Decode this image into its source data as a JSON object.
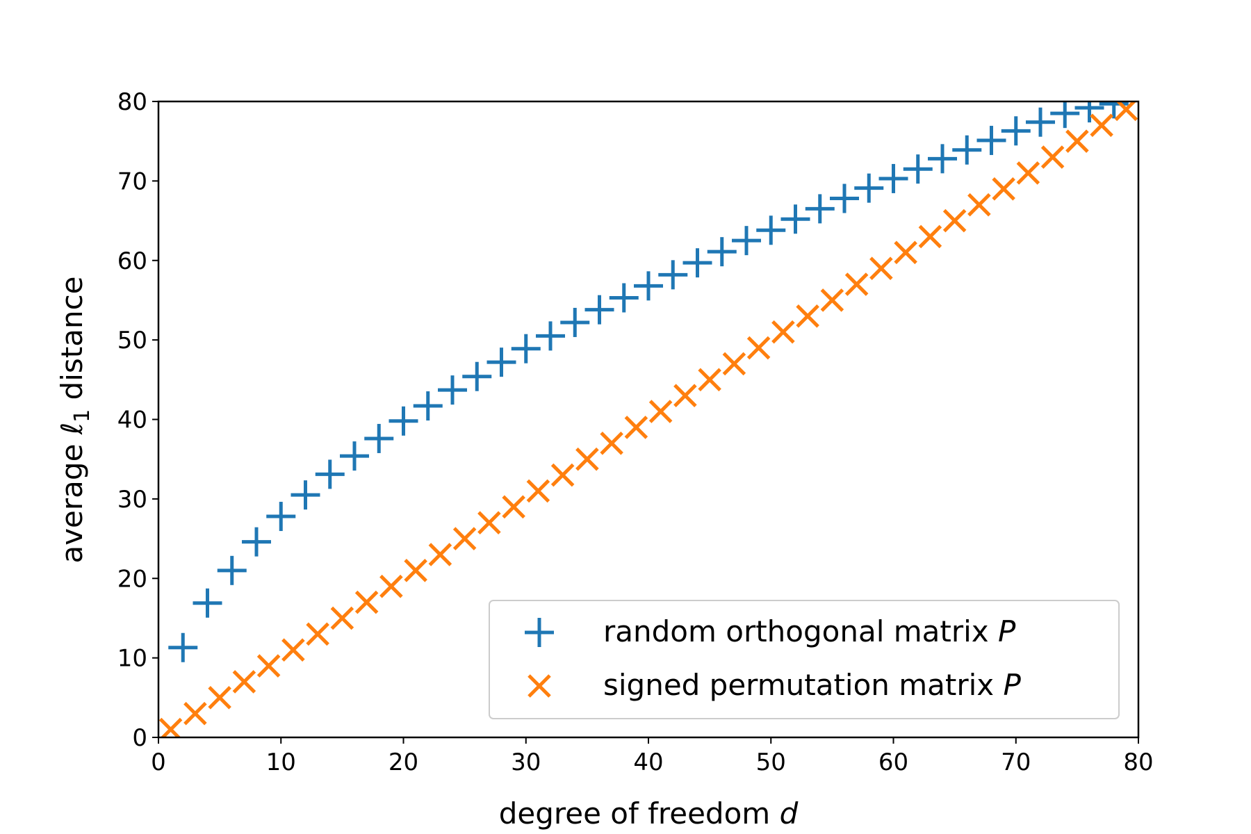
{
  "chart_data": {
    "type": "scatter",
    "xlabel": {
      "main": "degree of freedom ",
      "var": "d"
    },
    "ylabel": {
      "pre": "average ",
      "ell": "ℓ",
      "sub": "1",
      "post": " distance"
    },
    "xlim": [
      0,
      80
    ],
    "ylim": [
      0,
      80
    ],
    "xticks": [
      "0",
      "10",
      "20",
      "30",
      "40",
      "50",
      "60",
      "70",
      "80"
    ],
    "yticks": [
      "0",
      "10",
      "20",
      "30",
      "40",
      "50",
      "60",
      "70",
      "80"
    ],
    "grid": false,
    "legend_position": "lower-right",
    "series": [
      {
        "name": "random orthogonal matrix P",
        "label_text": "random orthogonal matrix ",
        "label_var": "P",
        "marker": "plus",
        "color": "#1f77b4",
        "x": [
          2,
          4,
          6,
          8,
          10,
          12,
          14,
          16,
          18,
          20,
          22,
          24,
          26,
          28,
          30,
          32,
          34,
          36,
          38,
          40,
          42,
          44,
          46,
          48,
          50,
          52,
          54,
          56,
          58,
          60,
          62,
          64,
          66,
          68,
          70,
          72,
          74,
          76,
          78
        ],
        "y": [
          11.3,
          16.9,
          21.0,
          24.6,
          27.8,
          30.5,
          33.1,
          35.4,
          37.6,
          39.8,
          41.7,
          43.7,
          45.4,
          47.2,
          48.9,
          50.5,
          52.2,
          53.8,
          55.3,
          56.8,
          58.2,
          59.7,
          61.1,
          62.5,
          63.8,
          65.2,
          66.5,
          67.8,
          69.1,
          70.3,
          71.5,
          72.8,
          73.9,
          75.1,
          76.3,
          77.4,
          78.5,
          79.2,
          79.7
        ]
      },
      {
        "name": "signed permutation matrix P",
        "label_text": "signed permutation matrix ",
        "label_var": "P",
        "marker": "x",
        "color": "#ff7f0e",
        "x": [
          1,
          3,
          5,
          7,
          9,
          11,
          13,
          15,
          17,
          19,
          21,
          23,
          25,
          27,
          29,
          31,
          33,
          35,
          37,
          39,
          41,
          43,
          45,
          47,
          49,
          51,
          53,
          55,
          57,
          59,
          61,
          63,
          65,
          67,
          69,
          71,
          73,
          75,
          77,
          79
        ],
        "y": [
          1,
          3,
          5,
          7,
          9,
          11,
          13,
          15,
          17,
          19,
          21,
          23,
          25,
          27,
          29,
          31,
          33,
          35,
          37,
          39,
          41,
          43,
          45,
          47,
          49,
          51,
          53,
          55,
          57,
          59,
          61,
          63,
          65,
          67,
          69,
          71,
          73,
          75,
          77,
          79
        ]
      }
    ]
  }
}
